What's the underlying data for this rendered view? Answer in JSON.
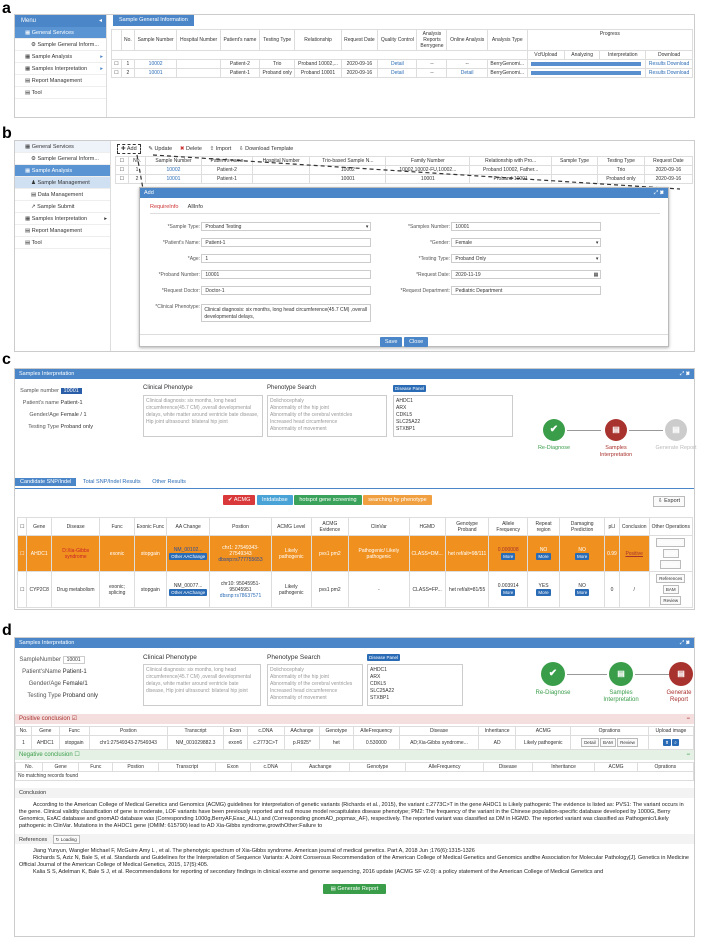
{
  "panels": {
    "a": "a",
    "b": "b",
    "c": "c",
    "d": "d"
  },
  "a": {
    "menu_title": "Menu",
    "sidebar": [
      "General Services",
      "Sample General Inform...",
      "Sample Analysis",
      "Samples Interpretation",
      "Report Management",
      "Tool"
    ],
    "tab": "Sample General Information",
    "headers": [
      "No.",
      "Sample Number",
      "Hospital Number",
      "Patient's name",
      "Testing Type",
      "Relationship",
      "Request Date",
      "Quality Control",
      "Analysis Reports Berrygene",
      "Online Analysis",
      "Analysis Type",
      "Progress"
    ],
    "progress_sub": [
      "VcfUpload",
      "Analyzing",
      "Interpretation",
      "Download"
    ],
    "rows": [
      {
        "no": "1",
        "sample": "10002",
        "hosp": "",
        "name": "Patient-2",
        "type": "Trio",
        "rel": "Proband 10002,...",
        "date": "2020-09-16",
        "qc": "Detail",
        "arb": "--",
        "online": "--",
        "atype": "BerryGenomi...",
        "dl": "Results Download"
      },
      {
        "no": "2",
        "sample": "10001",
        "hosp": "",
        "name": "Patient-1",
        "type": "Proband only",
        "rel": "Proband 10001",
        "date": "2020-09-16",
        "qc": "Detail",
        "arb": "--",
        "online": "Detail",
        "atype": "BerryGenomi...",
        "dl": "Results Download"
      }
    ]
  },
  "b": {
    "sidebar": [
      "General Services",
      "Sample General Inform...",
      "Sample Analysis",
      "Sample Management",
      "Data Management",
      "Sample Submit",
      "Samples Interpretation",
      "Report Management",
      "Tool"
    ],
    "toolbar": [
      "Add",
      "Update",
      "Delete",
      "Import",
      "Download Template"
    ],
    "headers": [
      "No.",
      "Sample Number",
      "Patient's name",
      "Hospital Number",
      "Trio-based Sample N...",
      "Family Number",
      "Relationship with Pro...",
      "Sample Type",
      "Testing Type",
      "Request Date"
    ],
    "rows": [
      {
        "no": "1",
        "sample": "10002",
        "name": "Patient-2",
        "trio": "10002",
        "fam": "10002,10002-FU,10002...",
        "rel": "Proband 10002, Father...",
        "testing": "Trio",
        "date": "2020-09-16"
      },
      {
        "no": "2",
        "sample": "10001",
        "name": "Patient-1",
        "trio": "10001",
        "fam": "10001",
        "rel": "Proband 10001",
        "testing": "Proband only",
        "date": "2020-09-16"
      }
    ],
    "dialog": {
      "title": "Add",
      "tabs": [
        "RequireInfo",
        "AllInfo"
      ],
      "left": [
        [
          "*Sample Type:",
          "Proband Testing"
        ],
        [
          "*Patient's Name:",
          "Patient-1"
        ],
        [
          "*Age:",
          "1"
        ],
        [
          "*Proband Number:",
          "10001"
        ],
        [
          "*Request Doctor:",
          "Doctor-1"
        ]
      ],
      "right": [
        [
          "*Samples Number:",
          "10001"
        ],
        [
          "*Gender:",
          "Female"
        ],
        [
          "*Testing Type:",
          "Proband Only"
        ],
        [
          "*Request Date:",
          "2020-11-19"
        ],
        [
          "*Request Department:",
          "Pediatric Department"
        ]
      ],
      "phenotype_label": "*Clinical Phenotype:",
      "phenotype": "Clinical diagnosis: six months, long head circumference(45.7 CM) ,overall developmental delays,",
      "save": "Save",
      "close": "Close"
    }
  },
  "c": {
    "title": "Samples Interpretation",
    "info": [
      [
        "Sample number",
        "10001"
      ],
      [
        "Patient's name",
        "Patient-1"
      ],
      [
        "Gender/Age",
        "Female / 1"
      ],
      [
        "Testing Type",
        "Proband only"
      ]
    ],
    "clinical_label": "Clinical Phenotype",
    "clinical_text": "Clinical diagnosis: six months, long head circumference(45.7 CM) ,overall developmental delays, white matter around ventricle bate disease, Hip joint ultrasound: bilateral hip joint",
    "pheno_label": "Phenotype Search",
    "pheno_items": [
      "Dolichocephaly",
      "Abnormality of the hip joint",
      "Abnormality of the cerebral ventricles",
      "Increased head circumference",
      "Abnormality of movement"
    ],
    "disease_btn": "Disease Panel",
    "genes": [
      "AHDC1",
      "ARX",
      "CDKL5",
      "SLC25A22",
      "STXBP1"
    ],
    "steps": [
      "Re-Diagnose",
      "Samples Interpretation",
      "Generate Report"
    ],
    "tabs": [
      "Candidate SNP/Indel",
      "Total SNP/Indel Results",
      "Other Results"
    ],
    "filters": [
      "ACMG",
      "Intdatabse",
      "hotspot gene screening",
      "searching by phenotype"
    ],
    "export": "Export",
    "headers": [
      "Gene",
      "Disease",
      "Func",
      "Exonic Func",
      "AA Change",
      "Postion",
      "ACMG Level",
      "ACMG Evidence",
      "ClinVar",
      "HGMD",
      "Genotype Proband",
      "Allele Frequency",
      "Repeat region",
      "Damaging Prediction",
      "pLI",
      "Conclusion",
      "Other Operations"
    ],
    "rows": [
      {
        "gene": "AHDC1",
        "disease": "D:Xia-Gibbs syndrome",
        "func": "exonic",
        "exfunc": "stopgain",
        "aa": "NM_00102...",
        "pos": "chr1: 27549343-27549343",
        "dbsnp": "dbsnp:rs777755653",
        "level": "Likely pathogenic",
        "evid": "pvs1 pm2",
        "clin": "Pathogenic/ Likely pathogenic",
        "hgmd": "CLASS=DM...",
        "geno": "het ref/alt=98/111",
        "af": "0.000008",
        "rep": "NO",
        "dmg": "NO",
        "pli": "0.99",
        "conc": "Positive"
      },
      {
        "gene": "CYP2C8",
        "disease": "Drug metabolism",
        "func": "exonic; splicing",
        "exfunc": "stopgain",
        "aa": "NM_00077...",
        "pos": "chr10: 95045951-95045951",
        "dbsnp": "dbsnp:rs78637571",
        "level": "Likely pathogenic",
        "evid": "pvs1 pm2",
        "clin": "-",
        "hgmd": "CLASS=FP...",
        "geno": "het ref/alt=81/55",
        "af": "0.003914",
        "rep": "YES",
        "dmg": "NO",
        "pli": "0",
        "conc": "/"
      }
    ],
    "other_aa": "Other AAChange",
    "more": "More",
    "ops": [
      "References",
      "BAM",
      "Review"
    ]
  },
  "d": {
    "title": "Samples Interpretation",
    "info": [
      [
        "SampleNumber",
        "10001"
      ],
      [
        "Patient'sName",
        "Patient-1"
      ],
      [
        "Gender/Age",
        "Female/1"
      ],
      [
        "Testing Type",
        "Proband only"
      ]
    ],
    "clinical_label": "Clinical Phenotype",
    "pheno_label": "Phenotype Search",
    "steps": [
      "Re-Diagnose",
      "Samples Interpretation",
      "Generate Report"
    ],
    "positive": "Positive conclusion",
    "pos_headers": [
      "No.",
      "Gene",
      "Func",
      "Postion",
      "Transcript",
      "Exon",
      "c.DNA",
      "AAchange",
      "Genotype",
      "AlleFrequency",
      "Disease",
      "Inheritance",
      "ACMG",
      "Oprations",
      "Upload image"
    ],
    "pos_row": {
      "no": "1",
      "gene": "AHDC1",
      "func": "stopgain",
      "pos": "chr1:27549343-27549343",
      "tr": "NM_001029882.3",
      "exon": "exon6",
      "cdna": "c.2773C>T",
      "aa": "p.R925*",
      "geno": "het",
      "af": "0.530000",
      "dis": "AD;Xia-Gibbs syndrome...",
      "inh": "AD",
      "acmg": "Likely pathogenic",
      "ops": [
        "Detail",
        "BAM",
        "Review"
      ]
    },
    "negative": "Negative conclusion",
    "neg_headers": [
      "No.",
      "Gene",
      "Func",
      "Postion",
      "Transcript",
      "Exon",
      "c.DNA",
      "Aachange",
      "Genotype",
      "AlleFrequency",
      "Disease",
      "Inheritance",
      "ACMG",
      "Oprations"
    ],
    "no_records": "No matching records found",
    "conclusion_label": "Conclusion",
    "conclusion": "According to the American College of Medical Genetics and Genomics (ACMG) guidelines for interpretation of genetic variants (Richards et al., 2015), the variant c.2773C>T in the gene AHDC1 is Likely pathogenic The evidence is listed as: PVS1: The variant occurs in the gene. Clinical validity classification of gene is moderate, LOF variants have been previously reported and null mouse model recapitulates disease phenotype; PM2: The frequency of the variant in the Chinese population-specific database developed by 1000G, Berry Genomics, ExAC database and gnomAD database was (Corresponding 1000g,BerryAF,Exac_ALL) and (Corresponding gnomAD_popmax_AF), respectively. The reported variant was classified as DM in HGMD. The reported variant was classified as Pathogenic/Likely pathogenic in ClinVar. Mutations in the AHDC1 gene (OMIM: 615790) lead to AD Xia-Gibbs syndrome,growthOther:Failure to",
    "references_label": "References",
    "loading": "Loading",
    "refs": [
      "Jiang Yunyun, Wangler Michael F, McGuire Amy L , et al. The phenotypic spectrum of Xia-Gibbs syndrome. American journal of medical genetics. Part A, 2018 Jun ;176(6):1315-1326",
      "Richards S, Aziz N, Bale S, et al. Standards and Guidelines for the Interpretation of Sequence Variants: A Joint Consensus Recommendation of the American College of Medical Genetics and Genomics andthe Association for Molecular Pathology[J]. Genetics in Medicine Official Journal of the American College of Medical Genetics, 2015, 17(5):405.",
      "Kalia S S, Adelman K, Bale S J, et al. Recommendations for reporting of secondary findings in clinical exome and genome sequencing, 2016 update (ACMG SF v2.0): a policy statement of the American College of Medical Genetics and"
    ],
    "generate": "Generate Report"
  },
  "colors": {
    "accent": "#4a86c8",
    "green": "#3a9d4a",
    "red": "#a8322d",
    "orange": "#f0911f"
  }
}
